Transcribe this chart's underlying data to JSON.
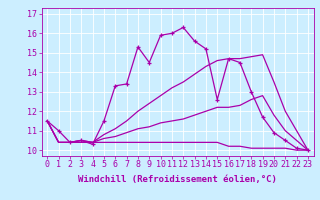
{
  "xlabel": "Windchill (Refroidissement éolien,°C)",
  "bg_color": "#cceeff",
  "line_color": "#aa00aa",
  "x_ticks": [
    0,
    1,
    2,
    3,
    4,
    5,
    6,
    7,
    8,
    9,
    10,
    11,
    12,
    13,
    14,
    15,
    16,
    17,
    18,
    19,
    20,
    21,
    22,
    23
  ],
  "ylim": [
    9.7,
    17.3
  ],
  "xlim": [
    -0.5,
    23.5
  ],
  "yticks": [
    10,
    11,
    12,
    13,
    14,
    15,
    16,
    17
  ],
  "series": [
    [
      11.5,
      11.0,
      10.4,
      10.5,
      10.3,
      11.5,
      13.3,
      13.4,
      15.3,
      14.5,
      15.9,
      16.0,
      16.3,
      15.6,
      15.2,
      12.6,
      14.7,
      14.5,
      13.0,
      11.7,
      10.9,
      10.5,
      10.1,
      10.0
    ],
    [
      11.5,
      10.4,
      10.4,
      10.4,
      10.4,
      10.4,
      10.4,
      10.4,
      10.4,
      10.4,
      10.4,
      10.4,
      10.4,
      10.4,
      10.4,
      10.4,
      10.2,
      10.2,
      10.1,
      10.1,
      10.1,
      10.1,
      10.0,
      10.0
    ],
    [
      11.5,
      10.4,
      10.4,
      10.5,
      10.4,
      10.6,
      10.7,
      10.9,
      11.1,
      11.2,
      11.4,
      11.5,
      11.6,
      11.8,
      12.0,
      12.2,
      12.2,
      12.3,
      12.6,
      12.8,
      11.8,
      11.0,
      10.5,
      10.0
    ],
    [
      11.5,
      10.4,
      10.4,
      10.5,
      10.4,
      10.8,
      11.1,
      11.5,
      12.0,
      12.4,
      12.8,
      13.2,
      13.5,
      13.9,
      14.3,
      14.6,
      14.7,
      14.7,
      14.8,
      14.9,
      13.5,
      12.0,
      11.0,
      10.0
    ]
  ],
  "tick_fontsize": 6,
  "xlabel_fontsize": 6.5
}
